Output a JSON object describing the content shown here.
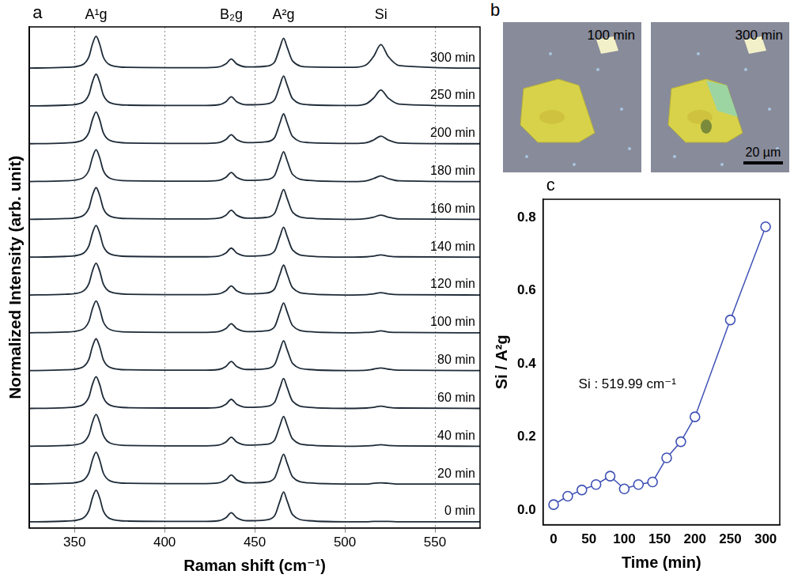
{
  "chart_data": [
    {
      "panel": "a",
      "type": "line",
      "x_label": "Raman shift (cm⁻¹)",
      "y_label": "Normalized Intensity (arb. unit)",
      "x": [
        325,
        345,
        354,
        358,
        360,
        362,
        364,
        366,
        370,
        380,
        420,
        430,
        434,
        437,
        440,
        446,
        456,
        461,
        464,
        466,
        468,
        471,
        480,
        505,
        512,
        516,
        520,
        524,
        530,
        575
      ],
      "series": [
        {
          "name": "0 min",
          "color": "#1e2b38",
          "values": [
            0.01,
            0.03,
            0.09,
            0.31,
            0.65,
            0.85,
            0.64,
            0.3,
            0.09,
            0.03,
            0.02,
            0.04,
            0.12,
            0.25,
            0.12,
            0.04,
            0.06,
            0.17,
            0.56,
            0.8,
            0.56,
            0.2,
            0.04,
            0.01,
            0.01,
            0.02,
            0.02,
            0.02,
            0.01,
            0.01
          ]
        },
        {
          "name": "20 min",
          "color": "#1e2b38",
          "values": [
            1.01,
            1.03,
            1.09,
            1.31,
            1.65,
            1.85,
            1.64,
            1.3,
            1.09,
            1.03,
            1.02,
            1.04,
            1.12,
            1.25,
            1.12,
            1.04,
            1.06,
            1.17,
            1.56,
            1.8,
            1.56,
            1.2,
            1.04,
            1.01,
            1.01,
            1.03,
            1.04,
            1.03,
            1.01,
            1.01
          ]
        },
        {
          "name": "40 min",
          "color": "#1e2b38",
          "values": [
            2.01,
            2.03,
            2.09,
            2.31,
            2.65,
            2.85,
            2.64,
            2.3,
            2.09,
            2.03,
            2.02,
            2.04,
            2.12,
            2.25,
            2.12,
            2.04,
            2.06,
            2.17,
            2.56,
            2.8,
            2.56,
            2.2,
            2.04,
            2.01,
            2.02,
            2.03,
            2.05,
            2.03,
            2.02,
            2.01
          ]
        },
        {
          "name": "60 min",
          "color": "#1e2b38",
          "values": [
            3.01,
            3.03,
            3.09,
            3.31,
            3.65,
            3.85,
            3.64,
            3.3,
            3.09,
            3.03,
            3.02,
            3.04,
            3.12,
            3.25,
            3.12,
            3.04,
            3.06,
            3.17,
            3.56,
            3.8,
            3.56,
            3.2,
            3.04,
            3.01,
            3.02,
            3.04,
            3.07,
            3.04,
            3.02,
            3.01
          ]
        },
        {
          "name": "80 min",
          "color": "#1e2b38",
          "values": [
            4.01,
            4.03,
            4.09,
            4.31,
            4.65,
            4.85,
            4.64,
            4.3,
            4.09,
            4.03,
            4.02,
            4.04,
            4.12,
            4.25,
            4.12,
            4.04,
            4.06,
            4.17,
            4.56,
            4.8,
            4.56,
            4.2,
            4.04,
            4.01,
            4.02,
            4.05,
            4.08,
            4.05,
            4.02,
            4.01
          ]
        },
        {
          "name": "100 min",
          "color": "#1e2b38",
          "values": [
            5.01,
            5.03,
            5.09,
            5.31,
            5.65,
            5.85,
            5.64,
            5.3,
            5.09,
            5.03,
            5.02,
            5.04,
            5.12,
            5.25,
            5.12,
            5.04,
            5.06,
            5.17,
            5.56,
            5.8,
            5.56,
            5.2,
            5.04,
            5.01,
            5.02,
            5.03,
            5.06,
            5.03,
            5.02,
            5.01
          ]
        },
        {
          "name": "120 min",
          "color": "#1e2b38",
          "values": [
            6.01,
            6.03,
            6.09,
            6.31,
            6.65,
            6.85,
            6.64,
            6.3,
            6.09,
            6.03,
            6.02,
            6.04,
            6.12,
            6.25,
            6.12,
            6.04,
            6.06,
            6.17,
            6.56,
            6.8,
            6.56,
            6.2,
            6.04,
            6.01,
            6.02,
            6.04,
            6.07,
            6.04,
            6.02,
            6.01
          ]
        },
        {
          "name": "140 min",
          "color": "#1e2b38",
          "values": [
            7.01,
            7.03,
            7.09,
            7.31,
            7.65,
            7.85,
            7.64,
            7.3,
            7.09,
            7.03,
            7.02,
            7.04,
            7.12,
            7.25,
            7.12,
            7.04,
            7.06,
            7.17,
            7.56,
            7.8,
            7.56,
            7.2,
            7.04,
            7.01,
            7.02,
            7.04,
            7.07,
            7.04,
            7.02,
            7.01
          ]
        },
        {
          "name": "160 min",
          "color": "#1e2b38",
          "values": [
            8.01,
            8.03,
            8.09,
            8.31,
            8.65,
            8.85,
            8.64,
            8.3,
            8.09,
            8.03,
            8.02,
            8.04,
            8.12,
            8.25,
            8.12,
            8.04,
            8.06,
            8.17,
            8.56,
            8.8,
            8.56,
            8.2,
            8.04,
            8.01,
            8.03,
            8.07,
            8.12,
            8.07,
            8.02,
            8.01
          ]
        },
        {
          "name": "180 min",
          "color": "#1e2b38",
          "values": [
            9.01,
            9.03,
            9.09,
            9.31,
            9.65,
            9.85,
            9.64,
            9.3,
            9.09,
            9.03,
            9.02,
            9.04,
            9.12,
            9.25,
            9.12,
            9.04,
            9.06,
            9.17,
            9.56,
            9.8,
            9.56,
            9.2,
            9.04,
            9.01,
            9.03,
            9.09,
            9.16,
            9.09,
            9.03,
            9.01
          ]
        },
        {
          "name": "200 min",
          "color": "#1e2b38",
          "values": [
            10.01,
            10.03,
            10.09,
            10.31,
            10.65,
            10.85,
            10.64,
            10.3,
            10.09,
            10.03,
            10.02,
            10.04,
            10.12,
            10.25,
            10.12,
            10.04,
            10.06,
            10.17,
            10.56,
            10.8,
            10.56,
            10.2,
            10.04,
            10.02,
            10.04,
            10.11,
            10.21,
            10.11,
            10.03,
            10.01
          ]
        },
        {
          "name": "250 min",
          "color": "#1e2b38",
          "values": [
            11.01,
            11.03,
            11.09,
            11.31,
            11.65,
            11.85,
            11.64,
            11.3,
            11.09,
            11.03,
            11.02,
            11.04,
            11.12,
            11.25,
            11.12,
            11.04,
            11.06,
            11.17,
            11.56,
            11.8,
            11.56,
            11.2,
            11.04,
            11.02,
            11.07,
            11.22,
            11.43,
            11.22,
            11.06,
            11.01
          ]
        },
        {
          "name": "300 min",
          "color": "#1e2b38",
          "values": [
            12.01,
            12.03,
            12.09,
            12.31,
            12.65,
            12.85,
            12.64,
            12.3,
            12.09,
            12.03,
            12.02,
            12.04,
            12.12,
            12.25,
            12.12,
            12.04,
            12.06,
            12.17,
            12.56,
            12.8,
            12.56,
            12.2,
            12.04,
            12.03,
            12.1,
            12.32,
            12.63,
            12.32,
            12.08,
            12.01
          ]
        }
      ],
      "xlim": [
        325,
        575
      ],
      "xticks": [
        350,
        400,
        450,
        500,
        550
      ],
      "ylim": [
        -0.15,
        13.1
      ],
      "tick_labels": "x",
      "grid": true,
      "marker": "none",
      "line_style": "solid",
      "peak_labels": [
        {
          "text": "A¹g",
          "x": 362
        },
        {
          "text": "B₂g",
          "x": 437
        },
        {
          "text": "A²g",
          "x": 466
        },
        {
          "text": "Si",
          "x": 520
        }
      ]
    },
    {
      "panel": "c",
      "type": "scatter",
      "x_label": "Time (min)",
      "y_label": "Si / A²g",
      "annotation": "Si : 519.99 cm⁻¹",
      "x": [
        0,
        20,
        40,
        60,
        80,
        100,
        120,
        140,
        160,
        180,
        200,
        250,
        300
      ],
      "values": [
        0.015,
        0.038,
        0.055,
        0.07,
        0.093,
        0.058,
        0.07,
        0.077,
        0.143,
        0.187,
        0.255,
        0.52,
        0.775
      ],
      "color": "#3f51b5",
      "marker": "circle",
      "line_style": "solid",
      "xlim": [
        -15,
        320
      ],
      "xticks": [
        0,
        50,
        100,
        150,
        200,
        250,
        300
      ],
      "ylim": [
        -0.04,
        0.85
      ],
      "yticks": [
        {
          "value": 0,
          "label": "0.0"
        },
        0.2,
        0.4,
        0.6,
        0.8
      ],
      "grid": false
    }
  ],
  "panel_b": {
    "panel": "b",
    "images": [
      "100 min",
      "300 min"
    ],
    "scale_bar": "20 µm"
  }
}
